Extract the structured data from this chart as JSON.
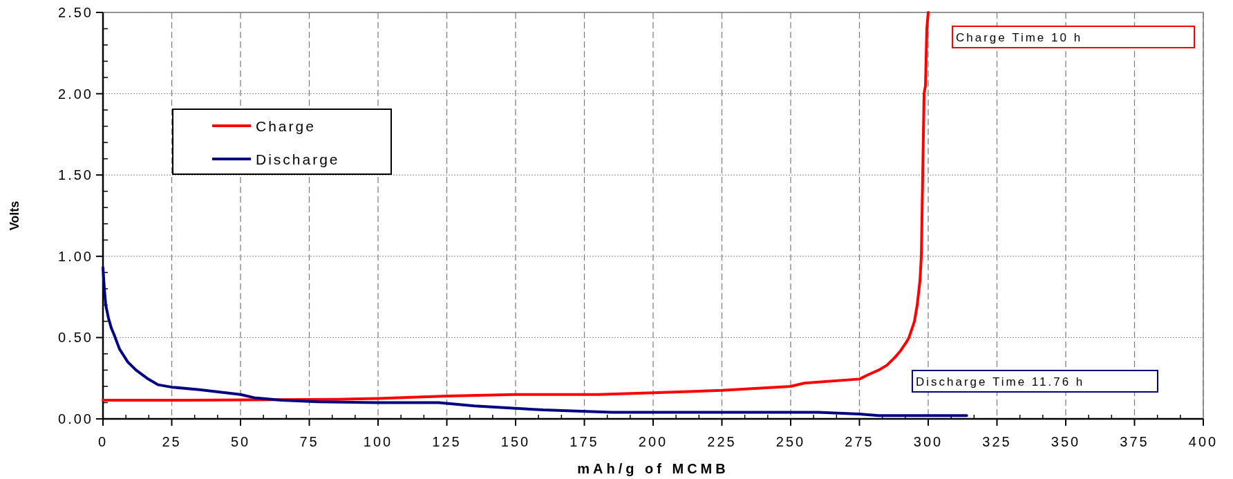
{
  "chart_data": {
    "type": "line",
    "xlabel": "mAh/g of MCMB",
    "ylabel": "Volts",
    "xlim": [
      0,
      400
    ],
    "xticks": [
      0,
      25,
      50,
      75,
      100,
      125,
      150,
      175,
      200,
      225,
      250,
      275,
      300,
      325,
      350,
      375,
      400
    ],
    "ylim": [
      0,
      2.5
    ],
    "yticks": [
      {
        "value": 0,
        "label": "0.00"
      },
      {
        "value": 0.5,
        "label": "0.50"
      },
      {
        "value": 1,
        "label": "1.00"
      },
      {
        "value": 1.5,
        "label": "1.50"
      },
      {
        "value": 2,
        "label": "2.00"
      },
      {
        "value": 2.5,
        "label": "2.50"
      }
    ],
    "grid": true,
    "legend": "top left",
    "line_style": "solid",
    "marker": "none",
    "series": [
      {
        "name": "Charge",
        "color": "#ff0000",
        "x": [
          0,
          30,
          85,
          100,
          125,
          150,
          180,
          200,
          225,
          250,
          255,
          275,
          278,
          282,
          285,
          288,
          290,
          292,
          293,
          294,
          295,
          296,
          297,
          297.5,
          298,
          298.5,
          299,
          299.5,
          300
        ],
        "values": [
          0.115,
          0.115,
          0.12,
          0.125,
          0.14,
          0.15,
          0.15,
          0.16,
          0.175,
          0.2,
          0.22,
          0.245,
          0.27,
          0.3,
          0.33,
          0.38,
          0.42,
          0.47,
          0.5,
          0.55,
          0.6,
          0.7,
          0.85,
          1.0,
          1.5,
          2.0,
          2.05,
          2.4,
          2.5
        ]
      },
      {
        "name": "Discharge",
        "color": "#000080",
        "x": [
          0,
          0.5,
          1,
          2,
          3,
          4,
          6,
          9,
          12,
          16,
          20,
          25,
          35,
          50,
          55,
          65,
          78,
          100,
          122,
          135,
          150,
          160,
          185,
          260,
          275,
          282,
          314
        ],
        "values": [
          0.93,
          0.8,
          0.7,
          0.62,
          0.56,
          0.52,
          0.43,
          0.35,
          0.3,
          0.25,
          0.21,
          0.195,
          0.18,
          0.15,
          0.13,
          0.115,
          0.105,
          0.1,
          0.1,
          0.08,
          0.065,
          0.055,
          0.04,
          0.04,
          0.03,
          0.02,
          0.02
        ]
      }
    ],
    "annotations": [
      "Charge Time 10 h",
      "Discharge Time 11.76 h"
    ]
  }
}
